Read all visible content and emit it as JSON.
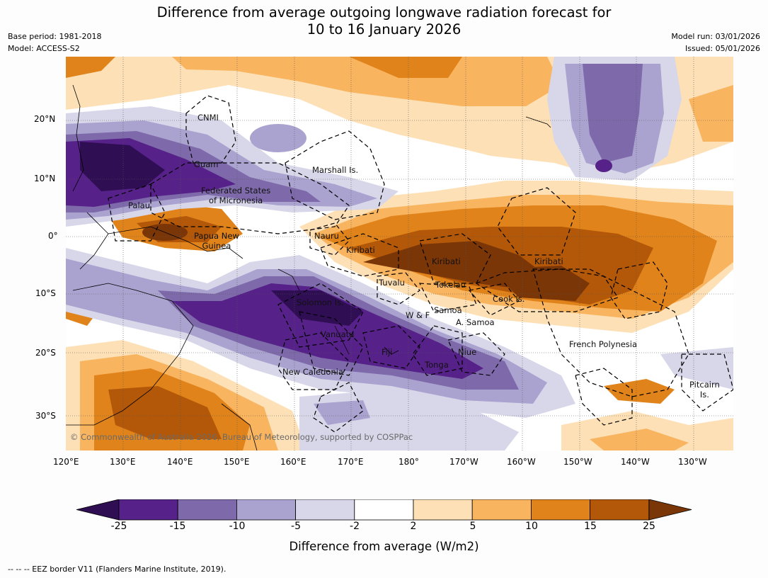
{
  "title": {
    "line1": "Difference from average outgoing longwave radiation forecast for",
    "line2": "10 to 16 January 2026"
  },
  "meta_left": {
    "base_period": "Base period: 1981-2018",
    "model": "Model: ACCESS-S2"
  },
  "meta_right": {
    "model_run": "Model run: 03/01/2026",
    "issued": "Issued: 05/01/2026"
  },
  "lat_labels": [
    "20°N",
    "10°N",
    "0°",
    "10°S",
    "20°S",
    "30°S"
  ],
  "lon_labels": [
    "120°E",
    "130°E",
    "140°E",
    "150°E",
    "160°E",
    "170°E",
    "180°",
    "170°W",
    "160°W",
    "150°W",
    "140°W",
    "130°W"
  ],
  "places": {
    "cnmi": "CNMI",
    "guam": "Guam",
    "marshall": "Marshall Is.",
    "fsm1": "Federated States",
    "fsm2": "of Micronesia",
    "palau": "Palau",
    "png1": "Papua New",
    "png2": "Guinea",
    "nauru": "Nauru",
    "kiribati_w": "Kiribati",
    "kiribati_c": "Kiribati",
    "kiribati_e": "Kiribati",
    "tuvalu": "Tuvalu",
    "tokelau": "Tokelau",
    "cook": "Cook Is.",
    "solomon": "Solomon Is.",
    "wf": "W & F",
    "samoa": "Samoa",
    "asamoa": "A. Samoa",
    "vanuatu": "Vanuatu",
    "fiji": "Fiji",
    "niue": "Niue",
    "tonga": "Tonga",
    "frenchpoly": "French Polynesia",
    "newcal": "New Caledonia",
    "pitcairn1": "Pitcairn",
    "pitcairn2": "Is."
  },
  "copyright": "© Commonwealth of Australia 2026, Bureau of Meteorology, supported by COSPPac",
  "colorbar": {
    "labels": [
      "-25",
      "-15",
      "-10",
      "-5",
      "-2",
      "2",
      "5",
      "10",
      "15",
      "25"
    ],
    "colors": [
      "#562188",
      "#7e6aaa",
      "#aba3cf",
      "#d8d7ea",
      "#ffffff",
      "#fde0b6",
      "#f9b45f",
      "#e0831b",
      "#b35808"
    ],
    "extend_low": "#2f0e54",
    "extend_high": "#7b3608",
    "title": "Difference from average (W/m2)"
  },
  "footer": "--  --  -- EEZ border V11 (Flanders Marine Institute, 2019)."
}
